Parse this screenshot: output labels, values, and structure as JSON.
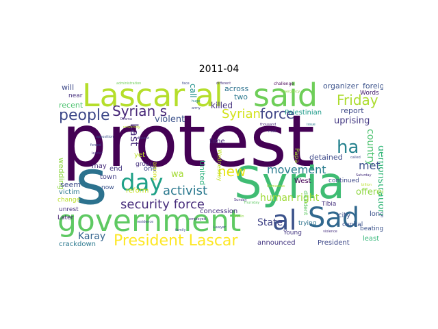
{
  "title": "2011-04",
  "words": [
    {
      "text": "protest",
      "color": "#440154"
    },
    {
      "text": "Syria",
      "color": "#3fbc73"
    },
    {
      "text": "government",
      "color": "#5ec962"
    },
    {
      "text": "s",
      "color": "#2c728e"
    },
    {
      "text": "Lascar al",
      "color": "#b5de2b"
    },
    {
      "text": "said",
      "color": "#6ece58"
    },
    {
      "text": "day",
      "color": "#1fa187"
    },
    {
      "text": "al",
      "color": "#3b528b"
    },
    {
      "text": "Sad",
      "color": "#31688e"
    },
    {
      "text": "President Lascar",
      "color": "#fde725"
    },
    {
      "text": "Syrian s",
      "color": "#482878"
    },
    {
      "text": "people",
      "color": "#3e4989"
    },
    {
      "text": "ha",
      "color": "#26828e"
    },
    {
      "text": "Friday",
      "color": "#addc30"
    },
    {
      "text": "force",
      "color": "#404688"
    },
    {
      "text": "Syrian",
      "color": "#d2e21b"
    },
    {
      "text": "new",
      "color": "#e5e419"
    },
    {
      "text": "activist",
      "color": "#2a788e"
    },
    {
      "text": "security force",
      "color": "#472d7b"
    },
    {
      "text": "movement",
      "color": "#287c8e"
    },
    {
      "text": "Last",
      "color": "#472c7a"
    },
    {
      "text": "country",
      "color": "#4ac16d"
    },
    {
      "text": "demonstration",
      "color": "#35b779"
    },
    {
      "text": "met",
      "color": "#3b528b"
    },
    {
      "text": "human right",
      "color": "#a0da39"
    },
    {
      "text": "offered",
      "color": "#90d743"
    },
    {
      "text": "State",
      "color": "#414487"
    },
    {
      "text": "Karay",
      "color": "#33638d"
    },
    {
      "text": "violent",
      "color": "#3b528b"
    },
    {
      "text": "killed",
      "color": "#46337e"
    },
    {
      "text": "uprising",
      "color": "#443983"
    },
    {
      "text": "report",
      "color": "#3e4989"
    },
    {
      "text": "organizer",
      "color": "#3b528b"
    },
    {
      "text": "foreign",
      "color": "#3b528b"
    },
    {
      "text": "across",
      "color": "#2c728e"
    },
    {
      "text": "two",
      "color": "#2a788e"
    },
    {
      "text": "call",
      "color": "#21918c"
    },
    {
      "text": "wa",
      "color": "#a5db36"
    },
    {
      "text": "United",
      "color": "#2db27d"
    },
    {
      "text": "detained",
      "color": "#3e4989"
    },
    {
      "text": "Palestinian",
      "color": "#1e9b8a"
    },
    {
      "text": "Words",
      "color": "#482173"
    },
    {
      "text": "recent",
      "color": "#4ac16d"
    },
    {
      "text": "will",
      "color": "#3e4a89"
    },
    {
      "text": "near",
      "color": "#46307e"
    },
    {
      "text": "wedding",
      "color": "#8fd744"
    },
    {
      "text": "may",
      "color": "#472c7a"
    },
    {
      "text": "end",
      "color": "#453882"
    },
    {
      "text": "town",
      "color": "#423f85"
    },
    {
      "text": "one",
      "color": "#3e4a89"
    },
    {
      "text": "yet",
      "color": "#bddf26"
    },
    {
      "text": "reform",
      "color": "#c8e020"
    },
    {
      "text": "group",
      "color": "#46307e"
    },
    {
      "text": "time",
      "color": "#482878"
    },
    {
      "text": "concession",
      "color": "#46307e"
    },
    {
      "text": "Papa",
      "color": "#a8db34"
    },
    {
      "text": "West",
      "color": "#440154"
    },
    {
      "text": "continued",
      "color": "#3e4989"
    },
    {
      "text": "seem",
      "color": "#3e4a89"
    },
    {
      "text": "victim",
      "color": "#2a788e"
    },
    {
      "text": "now",
      "color": "#3b528b"
    },
    {
      "text": "change",
      "color": "#b8de29"
    },
    {
      "text": "unrest",
      "color": "#46307e"
    },
    {
      "text": "Later",
      "color": "#482173"
    },
    {
      "text": "crackdown",
      "color": "#2a788e"
    },
    {
      "text": "announced",
      "color": "#453882"
    },
    {
      "text": "President",
      "color": "#3e4989"
    },
    {
      "text": "least",
      "color": "#35b779"
    },
    {
      "text": "long",
      "color": "#3b528b"
    },
    {
      "text": "city",
      "color": "#3b528b"
    },
    {
      "text": "Tibia",
      "color": "#46307e"
    },
    {
      "text": "trying",
      "color": "#2c728e"
    },
    {
      "text": "capital",
      "color": "#3b528b"
    },
    {
      "text": "beating",
      "color": "#3b528b"
    },
    {
      "text": "Young",
      "color": "#453882"
    },
    {
      "text": "Wednesday",
      "color": "#bddf26"
    },
    {
      "text": "dissident",
      "color": "#5ec962"
    },
    {
      "text": "among",
      "color": "#d0e11c"
    },
    {
      "text": "administration",
      "color": "#6ece58"
    },
    {
      "text": "face",
      "color": "#3e4989"
    },
    {
      "text": "challenge",
      "color": "#440154"
    },
    {
      "text": "different",
      "color": "#46307e"
    },
    {
      "text": "emergency",
      "color": "#8fd744"
    },
    {
      "text": "thousand",
      "color": "#482878"
    },
    {
      "text": "rival",
      "color": "#46307e"
    },
    {
      "text": "issue",
      "color": "#2a788e"
    },
    {
      "text": "huge",
      "color": "#26828e"
    },
    {
      "text": "army",
      "color": "#3e4989"
    },
    {
      "text": "Drama",
      "color": "#46307e"
    },
    {
      "text": "university",
      "color": "#b5de2b"
    },
    {
      "text": "dissent",
      "color": "#453882"
    },
    {
      "text": "forced",
      "color": "#3e4989"
    },
    {
      "text": "leader",
      "color": "#46307e"
    },
    {
      "text": "opposition",
      "color": "#3b528b"
    },
    {
      "text": "Thursday",
      "color": "#5ec962"
    },
    {
      "text": "rally",
      "color": "#482878"
    },
    {
      "text": "Saturday",
      "color": "#46307e"
    },
    {
      "text": "called",
      "color": "#3e4989"
    },
    {
      "text": "billion",
      "color": "#b8de29"
    },
    {
      "text": "violence",
      "color": "#46307e"
    },
    {
      "text": "family",
      "color": "#3b528b"
    },
    {
      "text": "employed",
      "color": "#46307e"
    },
    {
      "text": "residence",
      "color": "#3e4989"
    },
    {
      "text": "Damascus",
      "color": "#a8db34"
    },
    {
      "text": "Lawyer",
      "color": "#3e4989"
    },
    {
      "text": "Berlin",
      "color": "#8fd744"
    },
    {
      "text": "Sunday",
      "color": "#46307e"
    }
  ]
}
